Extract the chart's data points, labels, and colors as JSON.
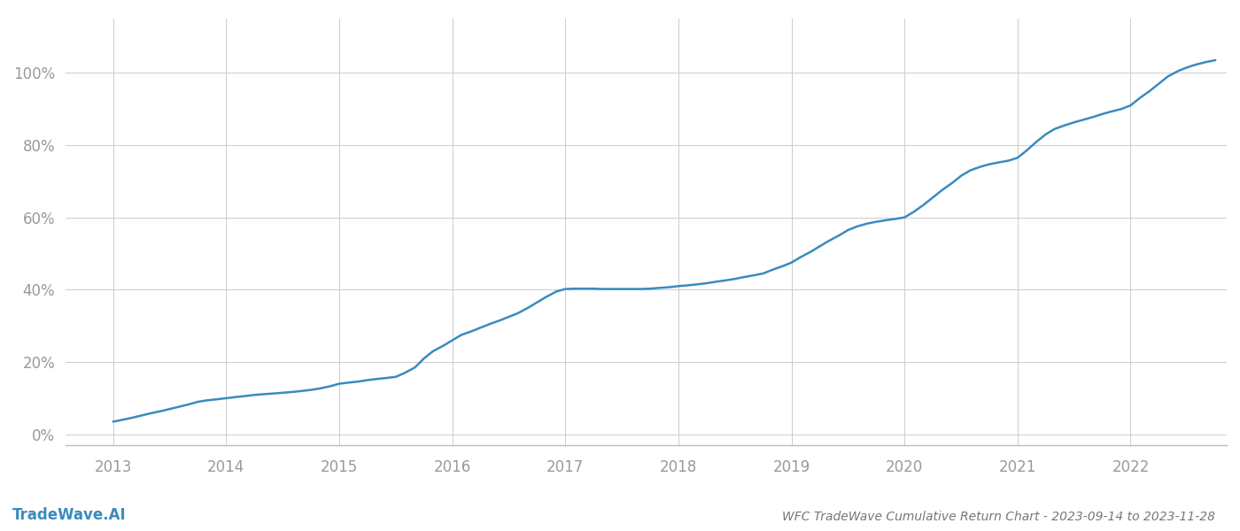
{
  "title": "WFC TradeWave Cumulative Return Chart - 2023-09-14 to 2023-11-28",
  "watermark": "TradeWave.AI",
  "line_color": "#3a8bbf",
  "line_width": 1.8,
  "background_color": "#ffffff",
  "grid_color": "#cccccc",
  "x_years": [
    2013,
    2014,
    2015,
    2016,
    2017,
    2018,
    2019,
    2020,
    2021,
    2022
  ],
  "x_values": [
    2013.0,
    2013.08,
    2013.17,
    2013.25,
    2013.33,
    2013.42,
    2013.5,
    2013.58,
    2013.67,
    2013.75,
    2013.83,
    2013.92,
    2014.0,
    2014.08,
    2014.17,
    2014.25,
    2014.33,
    2014.42,
    2014.5,
    2014.58,
    2014.67,
    2014.75,
    2014.83,
    2014.92,
    2015.0,
    2015.08,
    2015.17,
    2015.25,
    2015.33,
    2015.42,
    2015.5,
    2015.58,
    2015.67,
    2015.75,
    2015.83,
    2015.92,
    2016.0,
    2016.08,
    2016.17,
    2016.25,
    2016.33,
    2016.42,
    2016.5,
    2016.58,
    2016.67,
    2016.75,
    2016.83,
    2016.92,
    2017.0,
    2017.08,
    2017.17,
    2017.25,
    2017.33,
    2017.42,
    2017.5,
    2017.58,
    2017.67,
    2017.75,
    2017.83,
    2017.92,
    2018.0,
    2018.08,
    2018.17,
    2018.25,
    2018.33,
    2018.42,
    2018.5,
    2018.58,
    2018.67,
    2018.75,
    2018.83,
    2018.92,
    2019.0,
    2019.08,
    2019.17,
    2019.25,
    2019.33,
    2019.42,
    2019.5,
    2019.58,
    2019.67,
    2019.75,
    2019.83,
    2019.92,
    2020.0,
    2020.08,
    2020.17,
    2020.25,
    2020.33,
    2020.42,
    2020.5,
    2020.58,
    2020.67,
    2020.75,
    2020.83,
    2020.92,
    2021.0,
    2021.08,
    2021.17,
    2021.25,
    2021.33,
    2021.42,
    2021.5,
    2021.58,
    2021.67,
    2021.75,
    2021.83,
    2021.92,
    2022.0,
    2022.08,
    2022.17,
    2022.25,
    2022.33,
    2022.42,
    2022.5,
    2022.58,
    2022.67,
    2022.75
  ],
  "y_values": [
    3.5,
    4.0,
    4.6,
    5.2,
    5.8,
    6.4,
    7.0,
    7.6,
    8.3,
    9.0,
    9.4,
    9.7,
    10.0,
    10.3,
    10.6,
    10.9,
    11.1,
    11.3,
    11.5,
    11.7,
    12.0,
    12.3,
    12.7,
    13.3,
    14.0,
    14.3,
    14.6,
    15.0,
    15.3,
    15.6,
    15.9,
    17.0,
    18.5,
    21.0,
    23.0,
    24.5,
    26.0,
    27.5,
    28.5,
    29.5,
    30.5,
    31.5,
    32.5,
    33.5,
    35.0,
    36.5,
    38.0,
    39.5,
    40.2,
    40.3,
    40.3,
    40.3,
    40.2,
    40.2,
    40.2,
    40.2,
    40.2,
    40.3,
    40.5,
    40.7,
    41.0,
    41.2,
    41.5,
    41.8,
    42.2,
    42.6,
    43.0,
    43.5,
    44.0,
    44.5,
    45.5,
    46.5,
    47.5,
    49.0,
    50.5,
    52.0,
    53.5,
    55.0,
    56.5,
    57.5,
    58.3,
    58.8,
    59.2,
    59.6,
    60.0,
    61.5,
    63.5,
    65.5,
    67.5,
    69.5,
    71.5,
    73.0,
    74.0,
    74.7,
    75.2,
    75.7,
    76.5,
    78.5,
    81.0,
    83.0,
    84.5,
    85.5,
    86.3,
    87.0,
    87.8,
    88.6,
    89.3,
    90.0,
    91.0,
    93.0,
    95.0,
    97.0,
    99.0,
    100.5,
    101.5,
    102.3,
    103.0,
    103.5
  ],
  "yticks": [
    0,
    20,
    40,
    60,
    80,
    100
  ],
  "ytick_labels": [
    "0%",
    "20%",
    "40%",
    "60%",
    "80%",
    "100%"
  ],
  "ylim": [
    -3,
    115
  ],
  "xlim": [
    2012.58,
    2022.85
  ],
  "tick_color": "#999999",
  "title_color": "#777777",
  "watermark_color": "#3a8bbf",
  "title_fontsize": 10,
  "watermark_fontsize": 12,
  "tick_fontsize": 12,
  "figsize": [
    14.0,
    6.0
  ],
  "dpi": 100
}
